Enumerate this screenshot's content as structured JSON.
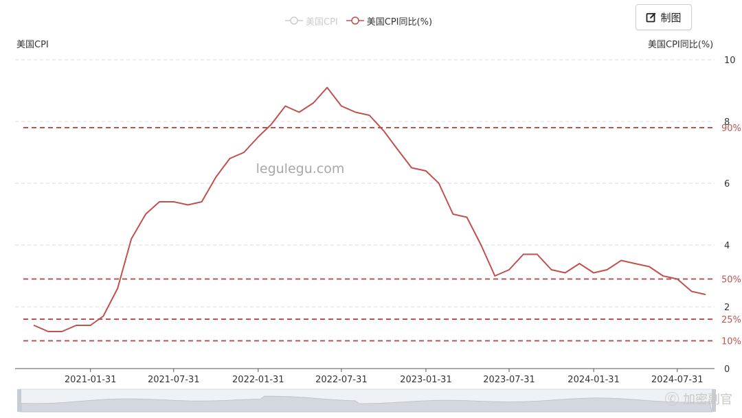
{
  "legend": {
    "items": [
      {
        "label": "美国CPI",
        "state": "off",
        "color": "#cccccc"
      },
      {
        "label": "美国CPI同比(%)",
        "state": "on",
        "color": "#c0504d"
      }
    ]
  },
  "toolbar": {
    "export_label": "制图"
  },
  "axes": {
    "left_name": "美国CPI",
    "right_name": "美国CPI同比(%)"
  },
  "watermark": "legulegu.com",
  "footer_watermark": "加密副官",
  "colors": {
    "series": "#c0504d",
    "grid": "#d9d9d9",
    "percentile": "#b85450",
    "label": "#333333"
  },
  "chart_data": {
    "type": "line",
    "x_tick_labels": [
      "2021-01-31",
      "2021-07-31",
      "2022-01-31",
      "2022-07-31",
      "2023-01-31",
      "2023-07-31",
      "2024-01-31",
      "2024-07-31"
    ],
    "y_right_ticks": [
      "0",
      "2",
      "4",
      "6",
      "8",
      "10"
    ],
    "ylim": [
      0,
      10
    ],
    "grid": true,
    "series": [
      {
        "name": "美国CPI同比(%)",
        "x": [
          "2020-09-30",
          "2020-10-31",
          "2020-11-30",
          "2020-12-31",
          "2021-01-31",
          "2021-02-28",
          "2021-03-31",
          "2021-04-30",
          "2021-05-31",
          "2021-06-30",
          "2021-07-31",
          "2021-08-31",
          "2021-09-30",
          "2021-10-31",
          "2021-11-30",
          "2021-12-31",
          "2022-01-31",
          "2022-02-28",
          "2022-03-31",
          "2022-04-30",
          "2022-05-31",
          "2022-06-30",
          "2022-07-31",
          "2022-08-31",
          "2022-09-30",
          "2022-10-31",
          "2022-11-30",
          "2022-12-31",
          "2023-01-31",
          "2023-02-28",
          "2023-03-31",
          "2023-04-30",
          "2023-05-31",
          "2023-06-30",
          "2023-07-31",
          "2023-08-31",
          "2023-09-30",
          "2023-10-31",
          "2023-11-30",
          "2023-12-31",
          "2024-01-31",
          "2024-02-29",
          "2024-03-31",
          "2024-04-30",
          "2024-05-31",
          "2024-06-30",
          "2024-07-31",
          "2024-08-31",
          "2024-09-30"
        ],
        "values": [
          1.4,
          1.2,
          1.2,
          1.4,
          1.4,
          1.7,
          2.6,
          4.2,
          5.0,
          5.4,
          5.4,
          5.3,
          5.4,
          6.2,
          6.8,
          7.0,
          7.5,
          7.9,
          8.5,
          8.3,
          8.6,
          9.1,
          8.5,
          8.3,
          8.2,
          7.7,
          7.1,
          6.5,
          6.4,
          6.0,
          5.0,
          4.9,
          4.0,
          3.0,
          3.2,
          3.7,
          3.7,
          3.2,
          3.1,
          3.4,
          3.1,
          3.2,
          3.5,
          3.4,
          3.3,
          3.0,
          2.9,
          2.5,
          2.4
        ]
      }
    ],
    "percentile_lines": [
      {
        "label": "90%",
        "value": 7.8
      },
      {
        "label": "50%",
        "value": 2.9
      },
      {
        "label": "25%",
        "value": 1.6
      },
      {
        "label": "10%",
        "value": 0.9
      }
    ],
    "legend_position": "top-center"
  }
}
